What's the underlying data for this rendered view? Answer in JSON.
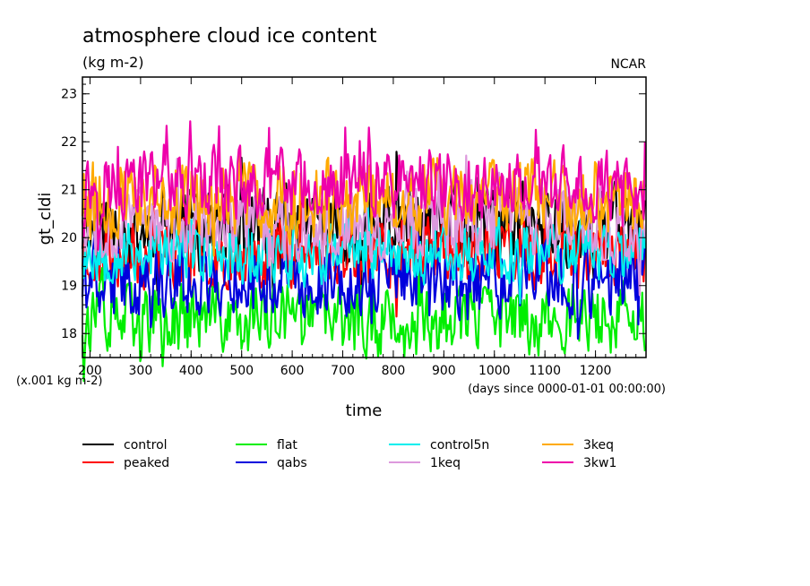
{
  "chart_data": {
    "type": "line",
    "title": "atmosphere cloud ice content",
    "subtitle": "(kg m-2)",
    "source_label": "NCAR",
    "xlabel": "time",
    "ylabel": "gt_cldi",
    "y_units": "(x.001 kg m-2)",
    "x_units": "(days since 0000-01-01 00:00:00)",
    "xlim": [
      185,
      1300
    ],
    "ylim": [
      17.5,
      23.35
    ],
    "x_ticks": [
      200,
      300,
      400,
      500,
      600,
      700,
      800,
      900,
      1000,
      1100,
      1200
    ],
    "y_ticks": [
      18,
      19,
      20,
      21,
      22,
      23
    ],
    "grid": false,
    "legend_position": "bottom",
    "series": [
      {
        "name": "control",
        "color": "#000000",
        "base": 20.2,
        "amp": 1.1,
        "seed": 11,
        "x": [
          185,
          1300
        ],
        "y_range": [
          18.0,
          22.6
        ]
      },
      {
        "name": "peaked",
        "color": "#ff0000",
        "base": 19.7,
        "amp": 0.9,
        "seed": 23,
        "x": [
          185,
          1300
        ],
        "y_range": [
          18.0,
          21.6
        ]
      },
      {
        "name": "flat",
        "color": "#00ee00",
        "base": 18.3,
        "amp": 0.9,
        "seed": 37,
        "x": [
          185,
          1300
        ],
        "y_range": [
          16.5,
          19.9
        ]
      },
      {
        "name": "qabs",
        "color": "#0000dd",
        "base": 19.1,
        "amp": 0.9,
        "seed": 41,
        "x": [
          185,
          1300
        ],
        "y_range": [
          17.4,
          20.6
        ]
      },
      {
        "name": "control5n",
        "color": "#00eeee",
        "base": 19.7,
        "amp": 0.8,
        "seed": 53,
        "x": [
          185,
          1300
        ],
        "y_range": [
          18.2,
          21.2
        ]
      },
      {
        "name": "1keq",
        "color": "#dd99dd",
        "base": 20.3,
        "amp": 0.9,
        "seed": 67,
        "x": [
          185,
          1300
        ],
        "y_range": [
          18.8,
          23.2
        ]
      },
      {
        "name": "3keq",
        "color": "#ffaa00",
        "base": 20.8,
        "amp": 1.0,
        "seed": 79,
        "x": [
          185,
          1300
        ],
        "y_range": [
          19.0,
          23.4
        ]
      },
      {
        "name": "3kw1",
        "color": "#ee00aa",
        "base": 21.1,
        "amp": 0.9,
        "seed": 97,
        "x": [
          185,
          1300
        ],
        "y_range": [
          19.4,
          23.6
        ]
      }
    ]
  }
}
